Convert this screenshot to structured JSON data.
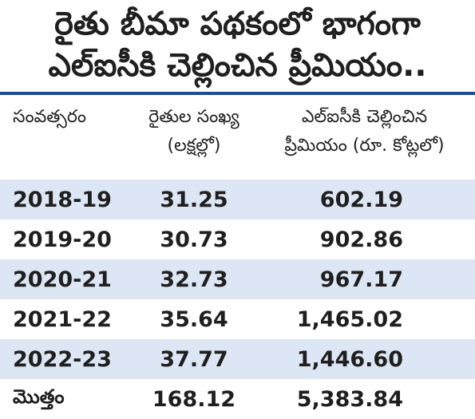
{
  "title": {
    "line1": "రైతు బీమా పథకంలో భాగంగా",
    "line2": "ఎల్‌ఐసీకి చెల్లించిన ప్రీమియం.."
  },
  "table": {
    "headers": {
      "year": "సంవత్సరం",
      "farmers_line1": "రైతుల సంఖ్య",
      "farmers_line2": "(లక్షల్లో)",
      "premium_line1": "ఎల్‌ఐసీకి చెల్లించిన",
      "premium_line2": "ప్రీమియం (రూ. కోట్లలో)"
    },
    "rows": [
      {
        "year": "2018-19",
        "farmers": "31.25",
        "premium": "602.19"
      },
      {
        "year": "2019-20",
        "farmers": "30.73",
        "premium": "902.86"
      },
      {
        "year": "2020-21",
        "farmers": "32.73",
        "premium": "967.17"
      },
      {
        "year": "2021-22",
        "farmers": "35.64",
        "premium": "1,465.02"
      },
      {
        "year": "2022-23",
        "farmers": "37.77",
        "premium": "1,446.60"
      }
    ],
    "total": {
      "label": "మొత్తం",
      "farmers": "168.12",
      "premium": "5,383.84"
    }
  },
  "colors": {
    "rule": "#1b4f8c",
    "row_shade": "#dde6f4",
    "text": "#1f1f1f"
  }
}
